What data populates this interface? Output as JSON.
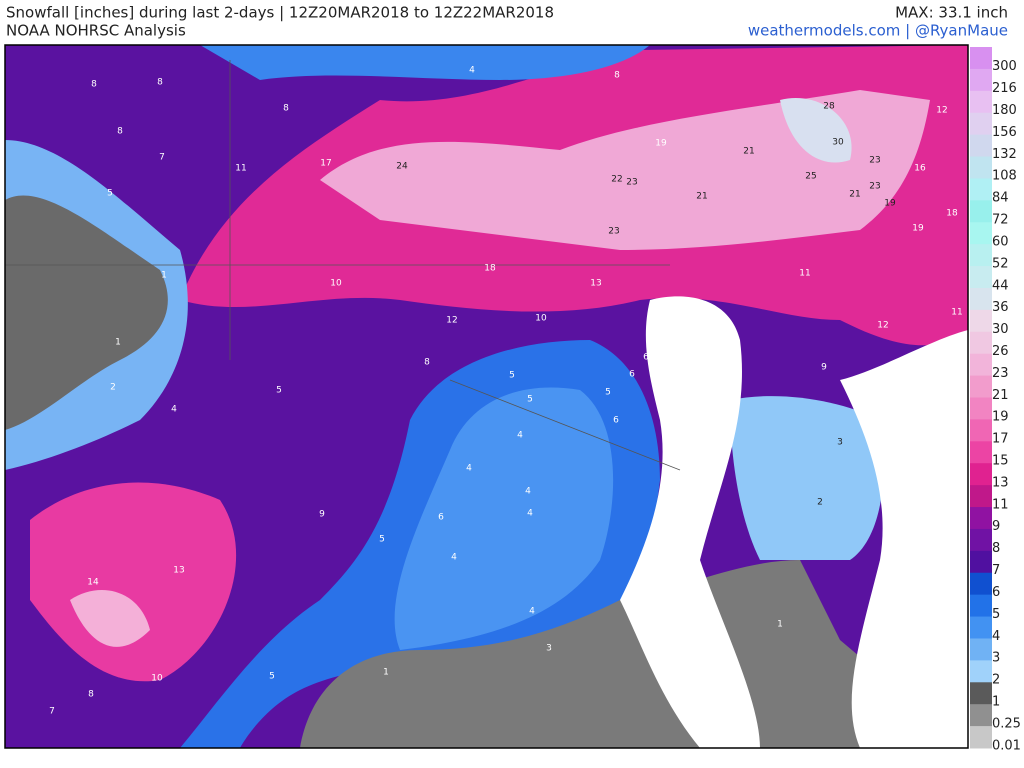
{
  "header": {
    "title": "Snowfall [inches] during last 2-days | 12Z20MAR2018 to 12Z22MAR2018",
    "subtitle": "NOAA NOHRSC Analysis",
    "max": "MAX: 33.1 inch",
    "credit": "weathermodels.com | @RyanMaue"
  },
  "colorbar": {
    "labels": [
      300,
      216,
      180,
      156,
      132,
      108,
      84,
      72,
      60,
      52,
      44,
      36,
      30,
      26,
      23,
      21,
      19,
      17,
      15,
      13,
      11,
      9,
      8,
      7,
      6,
      5,
      4,
      3,
      2,
      1,
      0.25,
      0.01
    ],
    "colors": [
      "#d890f0",
      "#e0a8f2",
      "#e8c0f2",
      "#e0d0f0",
      "#d0d8ee",
      "#c0e4f0",
      "#b0f0f4",
      "#98f0ec",
      "#a8f6f0",
      "#b8f0f0",
      "#c8ecf0",
      "#d8e4ee",
      "#eed8e8",
      "#f0c8e2",
      "#f2b4da",
      "#f29ccc",
      "#f284c2",
      "#f066b4",
      "#ec44a4",
      "#e02290",
      "#c0188a",
      "#9012a2",
      "#7012a4",
      "#5010a0",
      "#1050d0",
      "#2272e8",
      "#4292f2",
      "#70b2f4",
      "#a0d2fa",
      "#5a5a5a",
      "#909090",
      "#c8c8c8"
    ]
  },
  "map_labels": [
    8,
    8,
    8,
    7,
    8,
    4,
    8,
    28,
    30,
    12,
    11,
    17,
    24,
    19,
    21,
    23,
    16,
    5,
    22,
    23,
    21,
    25,
    21,
    23,
    19,
    18,
    19,
    23,
    1,
    10,
    18,
    13,
    11,
    11,
    12,
    12,
    10,
    1,
    8,
    6,
    6,
    9,
    2,
    5,
    5,
    5,
    5,
    4,
    6,
    4,
    3,
    4,
    4,
    2,
    9,
    6,
    4,
    5,
    4,
    14,
    13,
    4,
    1,
    3,
    5,
    1,
    10,
    8,
    7
  ]
}
